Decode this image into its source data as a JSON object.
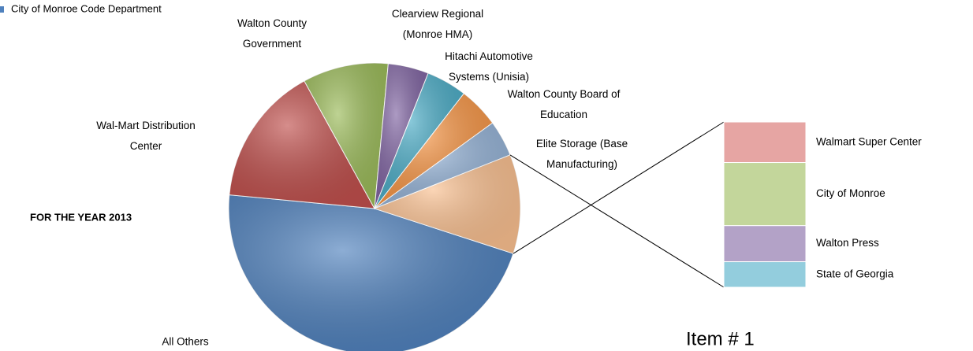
{
  "chart_data": {
    "type": "pie-of-bar",
    "legend_text": "City of Monroe Code Department",
    "annotations": [
      "FOR THE YEAR 2013",
      "Item # 1"
    ],
    "categories": [
      "All Others",
      "Wal-Mart Distribution Center",
      "Walton County Government",
      "Clearview Regional (Monroe HMA)",
      "Hitachi Automotive Systems (Unisia)",
      "Walton County Board of Education",
      "Elite Storage (Base Manufacturing)",
      null
    ],
    "values": [
      46.5,
      15.5,
      9.5,
      4.5,
      4.5,
      4.5,
      4,
      11
    ],
    "colors": [
      "#4f81bd",
      "#c0504d",
      "#9bbb59",
      "#8064a2",
      "#4bacc6",
      "#f79646",
      "#95b3d7",
      "#fac090"
    ],
    "bar_categories": [
      "Walmart Super Center",
      "City of Monroe",
      "Walton Press",
      "State of Georgia"
    ],
    "bar_values": [
      2.7,
      4.2,
      2.4,
      1.7
    ],
    "bar_colors": [
      "#e6a5a3",
      "#c3d69b",
      "#b3a2c7",
      "#93cddd"
    ]
  }
}
